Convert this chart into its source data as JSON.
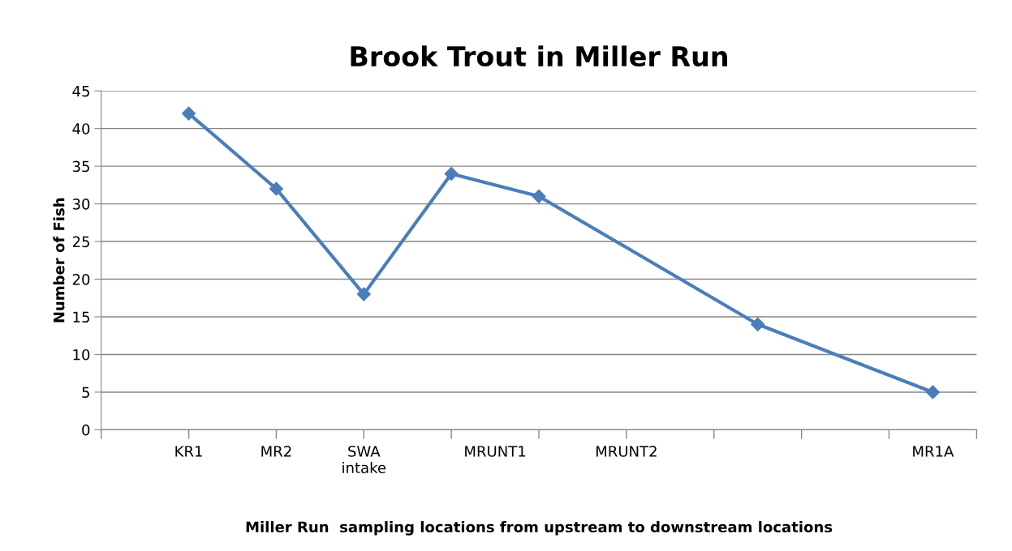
{
  "chart_data": {
    "type": "line",
    "title": "Brook Trout in Miller Run",
    "xlabel": "Miller Run  sampling locations from upstream to downstream locations",
    "ylabel": "Number of Fish",
    "categories": [
      null,
      "KR1",
      null,
      "MR2",
      null,
      "SWA\nintake",
      null,
      null,
      "MRUNT1",
      null,
      null,
      "MRUNT2",
      null,
      null,
      null,
      null,
      null,
      null,
      "MR1A"
    ],
    "series": [
      {
        "color": "#4a7ebb",
        "values": [
          null,
          42,
          null,
          32,
          null,
          18,
          null,
          34,
          null,
          31,
          null,
          null,
          null,
          null,
          14,
          null,
          null,
          null,
          5
        ]
      }
    ],
    "ylim": [
      0,
      45
    ],
    "yticks": [
      0,
      5,
      10,
      15,
      20,
      25,
      30,
      35,
      40,
      45
    ],
    "grid": "y",
    "marker": "diamond",
    "line_style": "solid",
    "legend": false
  }
}
